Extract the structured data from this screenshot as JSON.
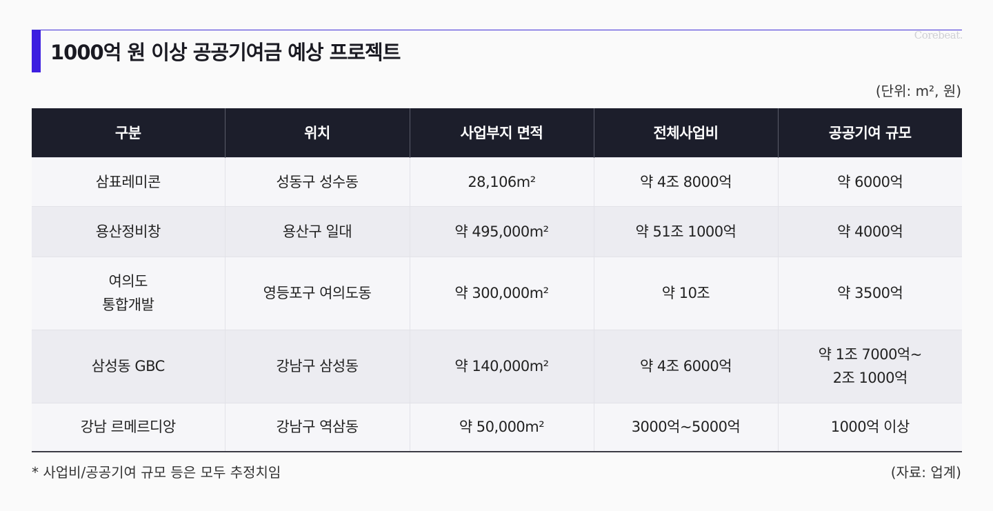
{
  "title": "1000억 원 이상 공공기여금 예상 프로젝트",
  "brand": "Corebeat.",
  "unit_note": "(단위: m², 원)",
  "colors": {
    "accent": "#3d1fe0",
    "header_bg": "#1c1e2b",
    "row_alt": "#ececf1"
  },
  "table": {
    "headers": [
      "구분",
      "위치",
      "사업부지 면적",
      "전체사업비",
      "공공기여 규모"
    ],
    "rows": [
      [
        "삼표레미콘",
        "성동구 성수동",
        "28,106m²",
        "약 4조 8000억",
        "약 6000억"
      ],
      [
        "용산정비창",
        "용산구 일대",
        "약 495,000m²",
        "약 51조 1000억",
        "약 4000억"
      ],
      [
        "여의도\n통합개발",
        "영등포구 여의도동",
        "약 300,000m²",
        "약 10조",
        "약 3500억"
      ],
      [
        "삼성동 GBC",
        "강남구 삼성동",
        "약 140,000m²",
        "약 4조 6000억",
        "약 1조 7000억~\n2조 1000억"
      ],
      [
        "강남 르메르디앙",
        "강남구 역삼동",
        "약 50,000m²",
        "3000억~5000억",
        "1000억 이상"
      ]
    ]
  },
  "footnote": "* 사업비/공공기여 규모 등은 모두 추정치임",
  "source": "(자료: 업계)"
}
